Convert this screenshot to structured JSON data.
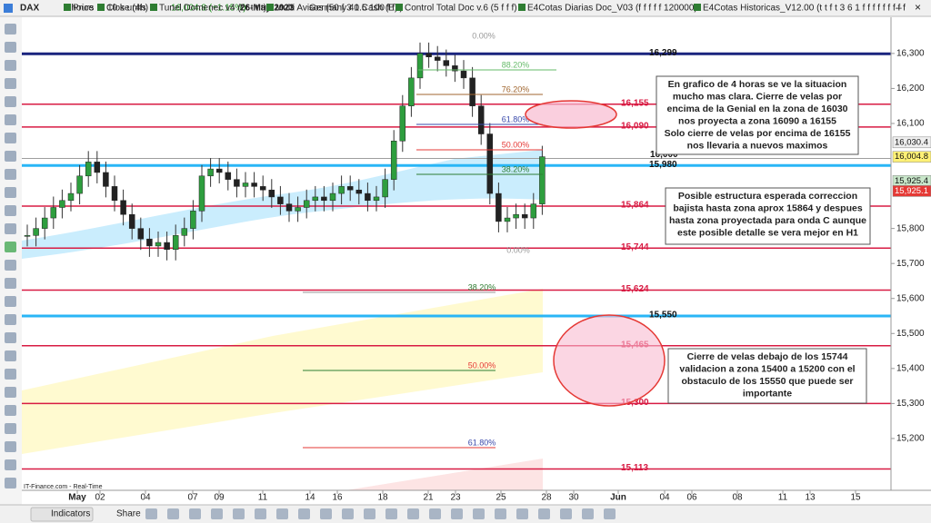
{
  "toolbar": {
    "symbol": "DAX",
    "timeframe": "4 hours",
    "units": "10 k units",
    "price": "16,004.8 (+1.15%)",
    "date": "26-May-2023",
    "instrument": "Germany 40 Cash (E1)"
  },
  "legend": [
    "Price",
    "Close (4h)",
    "Tunel Domenec v4 (t t t t t)",
    "Multi Avisos (50 f 3 1.5 100 f f)",
    "Control Total Doc v.6 (5 f f f)",
    "E4Cotas Diarias Doc_V03 (f f f f f 120000)",
    "E4Cotas Historicas_V12.00 (t t f t 3 6 1 f f f f f f f f f"
  ],
  "ylim": [
    15052,
    16406
  ],
  "yticks": [
    {
      "value": 16300,
      "label": "16,300"
    },
    {
      "value": 16200,
      "label": "16,200"
    },
    {
      "value": 16100,
      "label": "16,100"
    },
    {
      "value": 15800,
      "label": "15,800"
    },
    {
      "value": 15700,
      "label": "15,700"
    },
    {
      "value": 15600,
      "label": "15,600"
    },
    {
      "value": 15500,
      "label": "15,500"
    },
    {
      "value": 15400,
      "label": "15,400"
    },
    {
      "value": 15300,
      "label": "15,300"
    },
    {
      "value": 15200,
      "label": "15,200"
    }
  ],
  "levels": [
    {
      "value": 16299,
      "label": "16,299",
      "color": "#1a237e"
    },
    {
      "value": 16155,
      "label": "16,155",
      "color": "#d81b43"
    },
    {
      "value": 16090,
      "label": "16,090",
      "color": "#d81b43"
    },
    {
      "value": 16000,
      "label": "16,000",
      "color": "#9e9e9e"
    },
    {
      "value": 15980,
      "label": "15,980",
      "color": "#29b6f6"
    },
    {
      "value": 15864,
      "label": "15,864",
      "color": "#d81b43"
    },
    {
      "value": 15744,
      "label": "15,744",
      "color": "#d81b43"
    },
    {
      "value": 15624,
      "label": "15,624",
      "color": "#d81b43"
    },
    {
      "value": 15550,
      "label": "15,550",
      "color": "#29b6f6"
    },
    {
      "value": 15465,
      "label": "15,465",
      "color": "#d81b43"
    },
    {
      "value": 15300,
      "label": "15,300",
      "color": "#d81b43"
    },
    {
      "value": 15113,
      "label": "15,113",
      "color": "#d81b43"
    }
  ],
  "price_tags": [
    {
      "value": 16030.4,
      "label": "16,030.4",
      "color": "#eeeeee"
    },
    {
      "value": 16004.8,
      "label": "16,004.8",
      "color": "#fff176"
    },
    {
      "value": 15925.4,
      "label": "15,925.4",
      "color": "#c8e6c9"
    },
    {
      "value": 15925.1,
      "label": "15,925.1",
      "color": "#e53935"
    }
  ],
  "fib_labels": [
    "0.00%",
    "88.20%",
    "76.20%",
    "61.80%",
    "50.00%",
    "38.20%",
    "0.00%",
    "38.20%",
    "50.00%",
    "61.80%"
  ],
  "x_labels": [
    "May",
    "02",
    "04",
    "07",
    "09",
    "11",
    "14",
    "16",
    "18",
    "21",
    "23",
    "25",
    "28",
    "30",
    "Jun",
    "04",
    "06",
    "08",
    "11",
    "13",
    "15"
  ],
  "closes": [
    15780,
    15800,
    15830,
    15860,
    15880,
    15900,
    15950,
    15990,
    15960,
    15920,
    15880,
    15840,
    15800,
    15770,
    15750,
    15760,
    15740,
    15780,
    15800,
    15850,
    15950,
    15970,
    15960,
    15940,
    15920,
    15930,
    15920,
    15910,
    15890,
    15870,
    15850,
    15860,
    15880,
    15890,
    15880,
    15900,
    15920,
    15910,
    15900,
    15880,
    15890,
    15940,
    16050,
    16150,
    16230,
    16300,
    16290,
    16280,
    16265,
    16250,
    16230,
    16150,
    16070,
    15900,
    15820,
    15830,
    15840,
    15830,
    15870,
    16005
  ],
  "annotations": [
    [
      "En grafico de 4 horas se ve la situacion",
      "mucho mas clara. Cierre de velas por",
      "encima de la Genial en la zona de 16030",
      "nos proyecta a zona 16090 a 16155",
      "Solo cierre de velas por encima de 16155",
      "nos llevaria a nuevos maximos"
    ],
    [
      "Posible estructura esperada correccion",
      "bajista hasta zona aprox 15864 y despues",
      "hasta zona proyectada para onda C aunque",
      "este posible detalle se vera mejor en H1"
    ],
    [
      "Cierre de velas debajo de los 15744",
      "validacion a zona 15400 a 15200 con el",
      "obstaculo de los 15550 que puede ser",
      "importante"
    ]
  ],
  "source": "IT-Finance.com - Real-Time",
  "bottom_bar": {
    "indicators": "Indicators",
    "share": "Share"
  }
}
